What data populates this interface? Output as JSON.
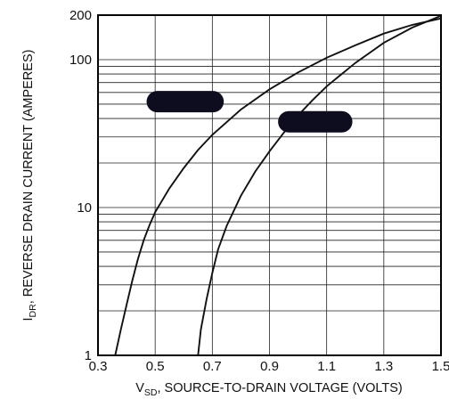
{
  "chart_data": {
    "type": "line",
    "xscale": "linear",
    "yscale": "log",
    "xlim": [
      0.3,
      1.5
    ],
    "ylim": [
      1,
      200
    ],
    "grid": true,
    "legend": "none",
    "x_ticks": [
      0.3,
      0.5,
      0.7,
      0.9,
      1.1,
      1.3,
      1.5
    ],
    "x_tick_labels": [
      "0.3",
      "0.5",
      "0.7",
      "0.9",
      "1.1",
      "1.3",
      "1.5"
    ],
    "y_tick_labels": [
      {
        "value": 1,
        "label": "1"
      },
      {
        "value": 10,
        "label": "10"
      },
      {
        "value": 100,
        "label": "100"
      },
      {
        "value": 200,
        "label": "200"
      }
    ],
    "xlabel": {
      "prefix": "V",
      "sub": "SD",
      "rest": ", SOURCE-TO-DRAIN VOLTAGE (VOLTS)"
    },
    "ylabel": {
      "prefix": "I",
      "sub": "DR",
      "rest": ", REVERSE DRAIN CURRENT (AMPERES)"
    },
    "series": [
      {
        "x": [
          0.36,
          0.38,
          0.4,
          0.42,
          0.44,
          0.46,
          0.48,
          0.5,
          0.55,
          0.6,
          0.65,
          0.7,
          0.8,
          0.9,
          1.0,
          1.1,
          1.2,
          1.3,
          1.4,
          1.5
        ],
        "y": [
          1,
          1.5,
          2.2,
          3.2,
          4.5,
          6.0,
          7.6,
          9.3,
          13.5,
          18.5,
          24.5,
          31,
          46,
          63,
          82,
          103,
          125,
          150,
          172,
          190
        ]
      },
      {
        "x": [
          0.65,
          0.66,
          0.68,
          0.7,
          0.72,
          0.75,
          0.8,
          0.85,
          0.9,
          0.95,
          1.0,
          1.05,
          1.1,
          1.2,
          1.3,
          1.4,
          1.5
        ],
        "y": [
          1,
          1.5,
          2.4,
          3.6,
          5.2,
          7.5,
          12,
          17.5,
          24,
          32,
          42,
          53,
          66,
          95,
          130,
          165,
          198
        ]
      }
    ],
    "redactions": [
      {
        "x": [
          0.47,
          0.74
        ],
        "y": 52
      },
      {
        "x": [
          0.93,
          1.19
        ],
        "y": 38
      }
    ]
  }
}
